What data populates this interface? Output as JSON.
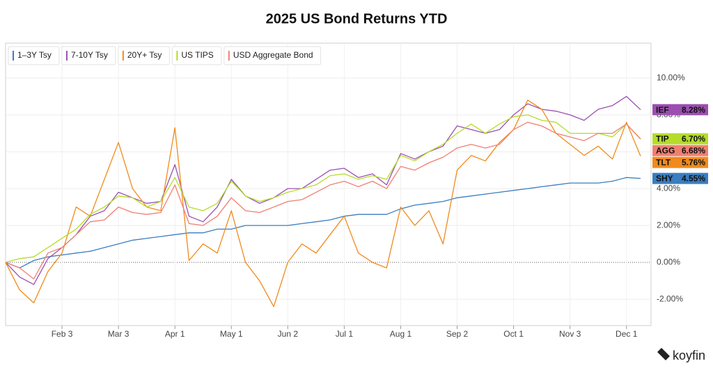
{
  "chart_data": {
    "type": "line",
    "title": "2025 US Bond Returns YTD",
    "brand": "koyfin",
    "categories": [
      null,
      null,
      null,
      null,
      "Feb 3",
      null,
      null,
      null,
      "Mar 3",
      null,
      null,
      null,
      "Apr 1",
      null,
      null,
      null,
      "May 1",
      null,
      null,
      null,
      "Jun 2",
      null,
      null,
      null,
      "Jul 1",
      null,
      null,
      null,
      "Aug 1",
      null,
      null,
      null,
      "Sep 2",
      null,
      null,
      null,
      "Oct 1",
      null,
      null,
      null,
      "Nov 3",
      null,
      null,
      null,
      "Dec 1",
      null
    ],
    "ylim": [
      -3.43,
      11.89
    ],
    "yticks": [
      {
        "value": -2,
        "label": "-2.00%"
      },
      {
        "value": 0,
        "label": "0.00%"
      },
      {
        "value": 2,
        "label": "2.00%"
      },
      {
        "value": 4,
        "label": "4.00%"
      },
      {
        "value": 6,
        "label": "6.00%"
      },
      {
        "value": 8,
        "label": "8.00%"
      },
      {
        "value": 10,
        "label": "10.00%"
      }
    ],
    "grid": true,
    "series": [
      {
        "name": "1–3Y Tsy",
        "ticker": "SHY",
        "last_label": "4.55%",
        "color": "#3a7dc0",
        "values": [
          0,
          -0.3,
          0.1,
          0.3,
          0.4,
          0.5,
          0.6,
          0.8,
          1.0,
          1.2,
          1.3,
          1.4,
          1.5,
          1.6,
          1.6,
          1.8,
          1.8,
          2.0,
          2.0,
          2.0,
          2.0,
          2.1,
          2.2,
          2.3,
          2.5,
          2.6,
          2.6,
          2.6,
          2.9,
          3.1,
          3.2,
          3.3,
          3.5,
          3.6,
          3.7,
          3.8,
          3.9,
          4.0,
          4.1,
          4.2,
          4.3,
          4.3,
          4.3,
          4.4,
          4.6,
          4.55
        ]
      },
      {
        "name": "7-10Y Tsy",
        "ticker": "IEF",
        "last_label": "8.28%",
        "color": "#9b4fb0",
        "values": [
          0,
          -0.8,
          -1.2,
          0.2,
          0.8,
          1.5,
          2.5,
          2.8,
          3.8,
          3.5,
          3.2,
          3.3,
          5.3,
          2.5,
          2.2,
          3.0,
          4.5,
          3.6,
          3.2,
          3.5,
          4.0,
          4.0,
          4.5,
          5.0,
          5.1,
          4.6,
          4.8,
          4.2,
          5.9,
          5.6,
          6.0,
          6.3,
          7.4,
          7.2,
          7.0,
          7.2,
          8.0,
          8.6,
          8.3,
          8.2,
          8.0,
          7.7,
          8.3,
          8.5,
          9.0,
          8.28
        ]
      },
      {
        "name": "20Y+ Tsy",
        "ticker": "TLT",
        "last_label": "5.76%",
        "color": "#f08a1c",
        "values": [
          0,
          -1.5,
          -2.2,
          -0.5,
          0.5,
          3.0,
          2.5,
          4.5,
          6.5,
          4.0,
          3.0,
          2.8,
          7.3,
          0.1,
          1.0,
          0.5,
          2.8,
          0.0,
          -1.0,
          -2.4,
          0.0,
          1.0,
          0.5,
          1.5,
          2.5,
          0.5,
          0.0,
          -0.3,
          3.0,
          2.0,
          2.8,
          1.0,
          5.0,
          5.8,
          5.5,
          6.5,
          7.2,
          8.8,
          8.3,
          7.0,
          6.4,
          5.8,
          6.3,
          5.6,
          7.6,
          5.76
        ]
      },
      {
        "name": "US TIPS",
        "ticker": "TIP",
        "last_label": "6.70%",
        "color": "#b5dc2a",
        "values": [
          0,
          0.2,
          0.3,
          0.8,
          1.3,
          1.8,
          2.6,
          3.0,
          3.6,
          3.5,
          3.0,
          3.3,
          4.6,
          3.0,
          2.8,
          3.2,
          4.4,
          3.6,
          3.3,
          3.5,
          3.8,
          4.0,
          4.2,
          4.7,
          4.8,
          4.5,
          4.7,
          4.5,
          5.8,
          5.5,
          6.0,
          6.4,
          7.0,
          7.5,
          7.0,
          7.5,
          7.9,
          8.0,
          7.7,
          7.6,
          7.0,
          7.0,
          7.0,
          6.8,
          7.5,
          6.7
        ]
      },
      {
        "name": "USD Aggregate Bond",
        "ticker": "AGG",
        "last_label": "6.68%",
        "color": "#f07f72",
        "values": [
          0,
          -0.3,
          -0.9,
          0.5,
          0.8,
          1.5,
          2.2,
          2.3,
          3.0,
          2.7,
          2.6,
          2.7,
          4.2,
          2.1,
          2.0,
          2.5,
          3.5,
          2.8,
          2.7,
          3.0,
          3.3,
          3.4,
          3.8,
          4.2,
          4.4,
          4.1,
          4.4,
          4.0,
          5.2,
          5.0,
          5.4,
          5.7,
          6.2,
          6.4,
          6.2,
          6.4,
          7.2,
          7.6,
          7.4,
          7.0,
          6.8,
          6.6,
          7.0,
          7.0,
          7.5,
          6.68
        ]
      }
    ]
  }
}
